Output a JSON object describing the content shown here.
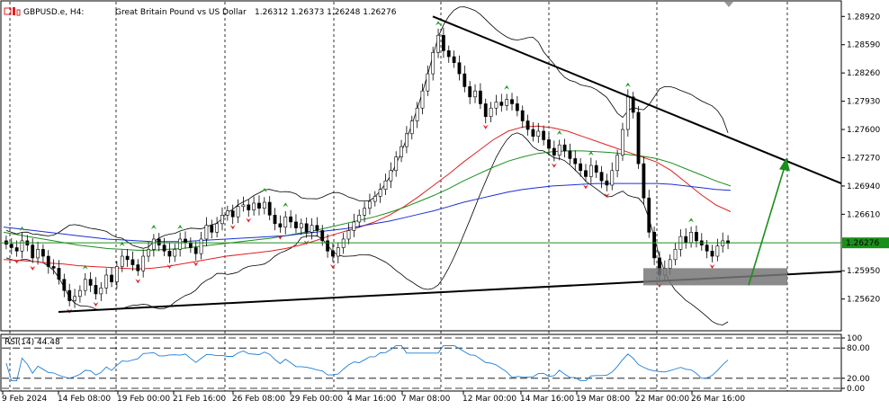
{
  "header": {
    "symbol": "GBPUSD.e, H4:",
    "description": "Great Britain Pound vs US Dollar",
    "ohlc": "1.26312 1.26373 1.26248 1.26276"
  },
  "rsi_label": "RSI(14) 44.48",
  "colors": {
    "bull_candle": "#000000",
    "bear_candle": "#000000",
    "current_price_line": "#1a8f1a",
    "current_price_box": "#1a8f1a",
    "ma_red": "#e02020",
    "ma_green": "#1a8f1a",
    "ma_blue": "#1c2fd6",
    "bollinger": "#000000",
    "rsi_line": "#1e7fd6",
    "fractal_up": "#1a9f1a",
    "fractal_down": "#e02020",
    "support_box": "#777777",
    "trend_lines": "#000000",
    "arrow": "#1a8f1a"
  },
  "chart_data": {
    "type": "candlestick",
    "symbol": "GBPUSD.e",
    "timeframe": "H4",
    "current_price": 1.26276,
    "price_axis_ticks": [
      "1.28920",
      "1.28590",
      "1.28260",
      "1.27930",
      "1.27600",
      "1.27270",
      "1.26940",
      "1.26610",
      "1.26276",
      "1.25950",
      "1.25620"
    ],
    "price_range": [
      1.2527,
      1.2907
    ],
    "time_axis_labels": [
      "9 Feb 2024",
      "14 Feb 08:00",
      "19 Feb 00:00",
      "21 Feb 16:00",
      "26 Feb 08:00",
      "29 Feb 00:00",
      "4 Mar 16:00",
      "7 Mar 08:00",
      "12 Mar 00:00",
      "14 Mar 16:00",
      "19 Mar 08:00",
      "22 Mar 00:00",
      "26 Mar 16:00"
    ],
    "rsi": {
      "period": 14,
      "value": 44.48,
      "levels": [
        "100",
        "80.00",
        "20.00",
        "0.00"
      ],
      "range": [
        0,
        100
      ]
    },
    "close_series": [
      1.2626,
      1.2622,
      1.2618,
      1.263,
      1.2625,
      1.261,
      1.262,
      1.2612,
      1.26,
      1.2598,
      1.2585,
      1.2572,
      1.256,
      1.2565,
      1.2572,
      1.2585,
      1.2578,
      1.2568,
      1.2575,
      1.259,
      1.2582,
      1.26,
      1.2612,
      1.2608,
      1.2602,
      1.2595,
      1.2612,
      1.262,
      1.2632,
      1.2625,
      1.2618,
      1.2612,
      1.262,
      1.2632,
      1.2628,
      1.2622,
      1.2615,
      1.2632,
      1.2648,
      1.264,
      1.265,
      1.266,
      1.2665,
      1.2658,
      1.267,
      1.2672,
      1.2666,
      1.2674,
      1.2668,
      1.2675,
      1.266,
      1.265,
      1.2646,
      1.2658,
      1.2652,
      1.2645,
      1.265,
      1.264,
      1.2648,
      1.2642,
      1.263,
      1.2618,
      1.2612,
      1.2622,
      1.2632,
      1.2642,
      1.2652,
      1.266,
      1.2668,
      1.2676,
      1.2682,
      1.269,
      1.27,
      1.2712,
      1.2728,
      1.274,
      1.2755,
      1.277,
      1.2785,
      1.2805,
      1.2825,
      1.285,
      1.287,
      1.2852,
      1.2845,
      1.2838,
      1.2825,
      1.281,
      1.2798,
      1.2805,
      1.279,
      1.2775,
      1.2785,
      1.2792,
      1.2788,
      1.2795,
      1.279,
      1.2782,
      1.277,
      1.276,
      1.2752,
      1.2758,
      1.2748,
      1.2738,
      1.273,
      1.2742,
      1.2735,
      1.2726,
      1.272,
      1.2712,
      1.2705,
      1.2718,
      1.271,
      1.27,
      1.2695,
      1.2712,
      1.273,
      1.276,
      1.2798,
      1.278,
      1.272,
      1.268,
      1.264,
      1.261,
      1.259,
      1.2598,
      1.2608,
      1.262,
      1.2635,
      1.2628,
      1.264,
      1.263,
      1.2625,
      1.2618,
      1.2612,
      1.2624,
      1.263,
      1.2627
    ],
    "moving_averages": [
      {
        "color": "red",
        "values": [
          1.2608,
          1.2607,
          1.2606,
          1.2604,
          1.2603,
          1.2601,
          1.26,
          1.2599,
          1.2598,
          1.2597,
          1.2598,
          1.26,
          1.2603,
          1.2606,
          1.2609,
          1.2612,
          1.2614,
          1.2616,
          1.2618,
          1.2621,
          1.2625,
          1.263,
          1.2636,
          1.2641,
          1.2646,
          1.2652,
          1.266,
          1.267,
          1.2682,
          1.2695,
          1.2708,
          1.2722,
          1.2735,
          1.2748,
          1.2758,
          1.2763,
          1.2764,
          1.2762,
          1.2758,
          1.2752,
          1.2746,
          1.274,
          1.2734,
          1.2728,
          1.2722,
          1.2712,
          1.2698,
          1.2684,
          1.2672,
          1.2664
        ]
      },
      {
        "color": "green",
        "values": [
          1.264,
          1.2637,
          1.2634,
          1.2631,
          1.2628,
          1.2625,
          1.2623,
          1.2621,
          1.262,
          1.2619,
          1.2619,
          1.262,
          1.2621,
          1.2623,
          1.2625,
          1.2627,
          1.2629,
          1.2631,
          1.2633,
          1.2636,
          1.2639,
          1.2642,
          1.2646,
          1.265,
          1.2654,
          1.2658,
          1.2663,
          1.2669,
          1.2676,
          1.2683,
          1.2691,
          1.27,
          1.2708,
          1.2716,
          1.2723,
          1.2728,
          1.2732,
          1.2734,
          1.2735,
          1.2735,
          1.2734,
          1.2733,
          1.2731,
          1.2729,
          1.2726,
          1.2721,
          1.2714,
          1.2707,
          1.27,
          1.2694
        ]
      },
      {
        "color": "blue",
        "values": [
          1.2646,
          1.2644,
          1.2642,
          1.264,
          1.2638,
          1.2636,
          1.2634,
          1.2632,
          1.2631,
          1.263,
          1.2629,
          1.2629,
          1.2629,
          1.263,
          1.2631,
          1.2632,
          1.2633,
          1.2634,
          1.2635,
          1.2636,
          1.2638,
          1.264,
          1.2642,
          1.2644,
          1.2647,
          1.265,
          1.2653,
          1.2657,
          1.2661,
          1.2665,
          1.267,
          1.2675,
          1.2679,
          1.2683,
          1.2687,
          1.269,
          1.2692,
          1.2694,
          1.2695,
          1.2696,
          1.2697,
          1.2697,
          1.2697,
          1.2697,
          1.2697,
          1.2696,
          1.2694,
          1.2692,
          1.269,
          1.2689
        ]
      }
    ],
    "annotations": [
      {
        "type": "trendline",
        "name": "resistance",
        "from": {
          "x": "7 Mar 08:00",
          "y": 1.2892
        },
        "to": {
          "x": "end",
          "y": 1.2697
        }
      },
      {
        "type": "trendline",
        "name": "support",
        "from": {
          "x": "14 Feb 08:00",
          "y": 1.2547
        },
        "to": {
          "x": "end",
          "y": 1.2594
        }
      },
      {
        "type": "rectangle",
        "name": "support-zone",
        "y_range": [
          1.2578,
          1.2598
        ]
      },
      {
        "type": "arrow",
        "name": "projection-arrow",
        "from_y": 1.2578,
        "to_y": 1.2725
      }
    ]
  }
}
